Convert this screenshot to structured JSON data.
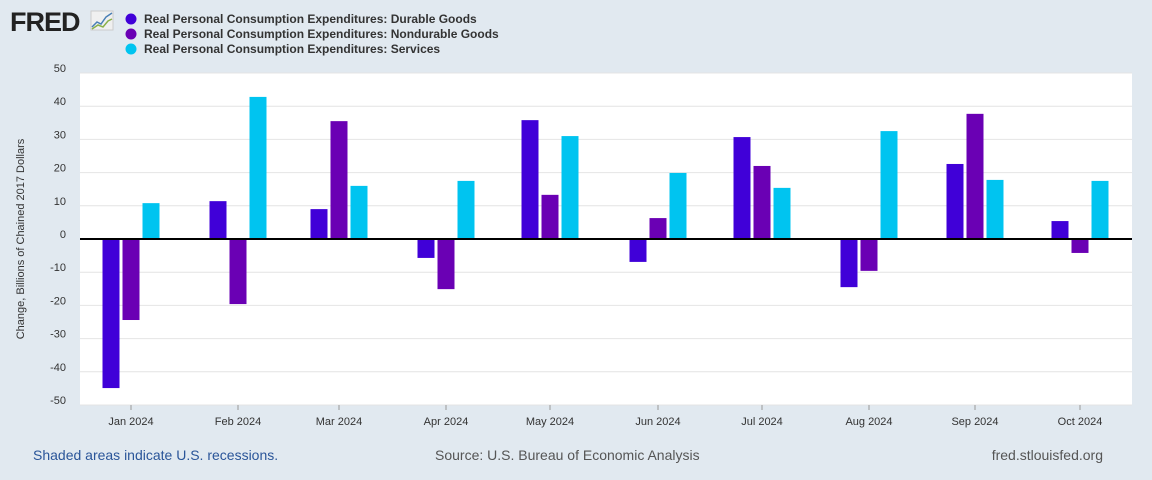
{
  "logo": {
    "text": "FRED"
  },
  "footer": {
    "recession_note": "Shaded areas indicate U.S. recessions.",
    "source": "Source: U.S. Bureau of Economic Analysis",
    "site": "fred.stlouisfed.org"
  },
  "chart_data": {
    "type": "bar",
    "title": "",
    "xlabel": "",
    "ylabel": "Change, Billions of Chained 2017 Dollars",
    "ylim": [
      -50,
      50
    ],
    "yticks": [
      50,
      40,
      30,
      20,
      10,
      0,
      -10,
      -20,
      -30,
      -40,
      -50
    ],
    "grid": true,
    "legend_position": "top-left",
    "categories": [
      "Jan 2024",
      "Feb 2024",
      "Mar 2024",
      "Apr 2024",
      "May 2024",
      "Jun 2024",
      "Jul 2024",
      "Aug 2024",
      "Sep 2024",
      "Oct 2024"
    ],
    "series": [
      {
        "name": "Real Personal Consumption Expenditures: Durable Goods",
        "color": "#4000d8",
        "values": [
          -44.9,
          11.4,
          9.0,
          -5.7,
          35.8,
          -6.9,
          30.7,
          -14.5,
          22.6,
          5.4
        ]
      },
      {
        "name": "Real Personal Consumption Expenditures: Nondurable Goods",
        "color": "#6a00b4",
        "values": [
          -24.4,
          -19.6,
          35.5,
          -15.1,
          13.3,
          6.3,
          22.0,
          -9.6,
          37.7,
          -4.2
        ]
      },
      {
        "name": "Real Personal Consumption Expenditures: Services",
        "color": "#00c4f0",
        "values": [
          10.8,
          42.8,
          16.0,
          17.5,
          31.0,
          19.9,
          15.4,
          32.5,
          17.8,
          17.5
        ]
      }
    ]
  }
}
